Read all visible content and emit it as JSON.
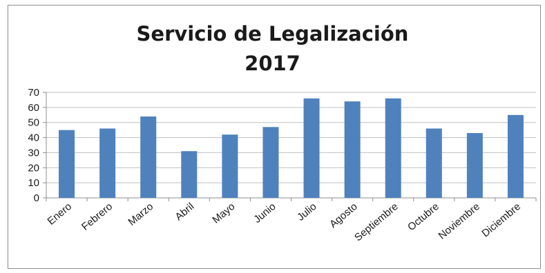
{
  "chart_data": {
    "type": "bar",
    "title": "Servicio de Legalización",
    "subtitle": "2017",
    "xlabel": "",
    "ylabel": "",
    "categories": [
      "Enero",
      "Febrero",
      "Marzo",
      "Abril",
      "Mayo",
      "Junio",
      "Julio",
      "Agosto",
      "Septiembre",
      "Octubre",
      "Noviembre",
      "Diciembre"
    ],
    "values": [
      45,
      46,
      54,
      31,
      42,
      47,
      66,
      64,
      66,
      46,
      43,
      55
    ],
    "ylim": [
      0,
      70
    ],
    "yticks": [
      "0",
      "10",
      "20",
      "30",
      "40",
      "50",
      "60",
      "70"
    ],
    "grid": true,
    "legend": "none",
    "colors": {
      "bar": "#4f81bd",
      "grid": "#bfbfbf",
      "axis": "#8c8c8c"
    }
  }
}
